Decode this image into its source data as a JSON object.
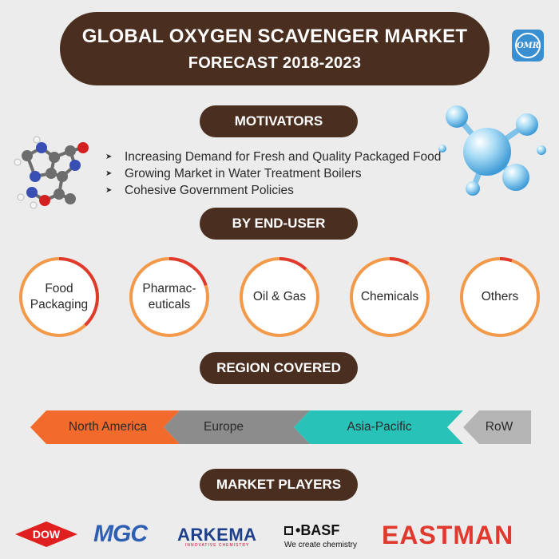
{
  "header": {
    "title_line1": "GLOBAL OXYGEN SCAVENGER MARKET",
    "title_line2": "FORECAST 2018-2023",
    "logo_text": "OMR"
  },
  "motivators": {
    "heading": "MOTIVATORS",
    "items": [
      "Increasing Demand for Fresh and Quality Packaged Food",
      "Growing Market in Water Treatment Boilers",
      "Cohesive Government Policies"
    ]
  },
  "end_user": {
    "heading": "BY END-USER",
    "segments": [
      {
        "label_lines": [
          "Food",
          "Packaging"
        ],
        "red_fraction": 0.38
      },
      {
        "label_lines": [
          "Pharmac-",
          "euticals"
        ],
        "red_fraction": 0.2
      },
      {
        "label_lines": [
          "Oil & Gas"
        ],
        "red_fraction": 0.12
      },
      {
        "label_lines": [
          "Chemicals"
        ],
        "red_fraction": 0.08
      },
      {
        "label_lines": [
          "Others"
        ],
        "red_fraction": 0.05
      }
    ],
    "colors": {
      "ring": "#f39a4a",
      "highlight": "#e03a2f"
    }
  },
  "regions": {
    "heading": "REGION COVERED",
    "items": [
      {
        "label": "North America",
        "color": "#f26a2c"
      },
      {
        "label": "Europe",
        "color": "#8c8c8c"
      },
      {
        "label": "Asia-Pacific",
        "color": "#29c2b8"
      },
      {
        "label": "RoW",
        "color": "#b5b5b5"
      }
    ]
  },
  "market_players": {
    "heading": "MARKET PLAYERS",
    "logos": {
      "dow": "DOW",
      "mgc": "MGC",
      "arkema": "ARKEMA",
      "arkema_tagline": "INNOVATIVE CHEMISTRY",
      "basf": "BASF",
      "basf_tagline": "We create chemistry",
      "eastman": "EASTMAN"
    }
  },
  "colors": {
    "brown": "#4a2e1f",
    "background": "#ececec"
  }
}
